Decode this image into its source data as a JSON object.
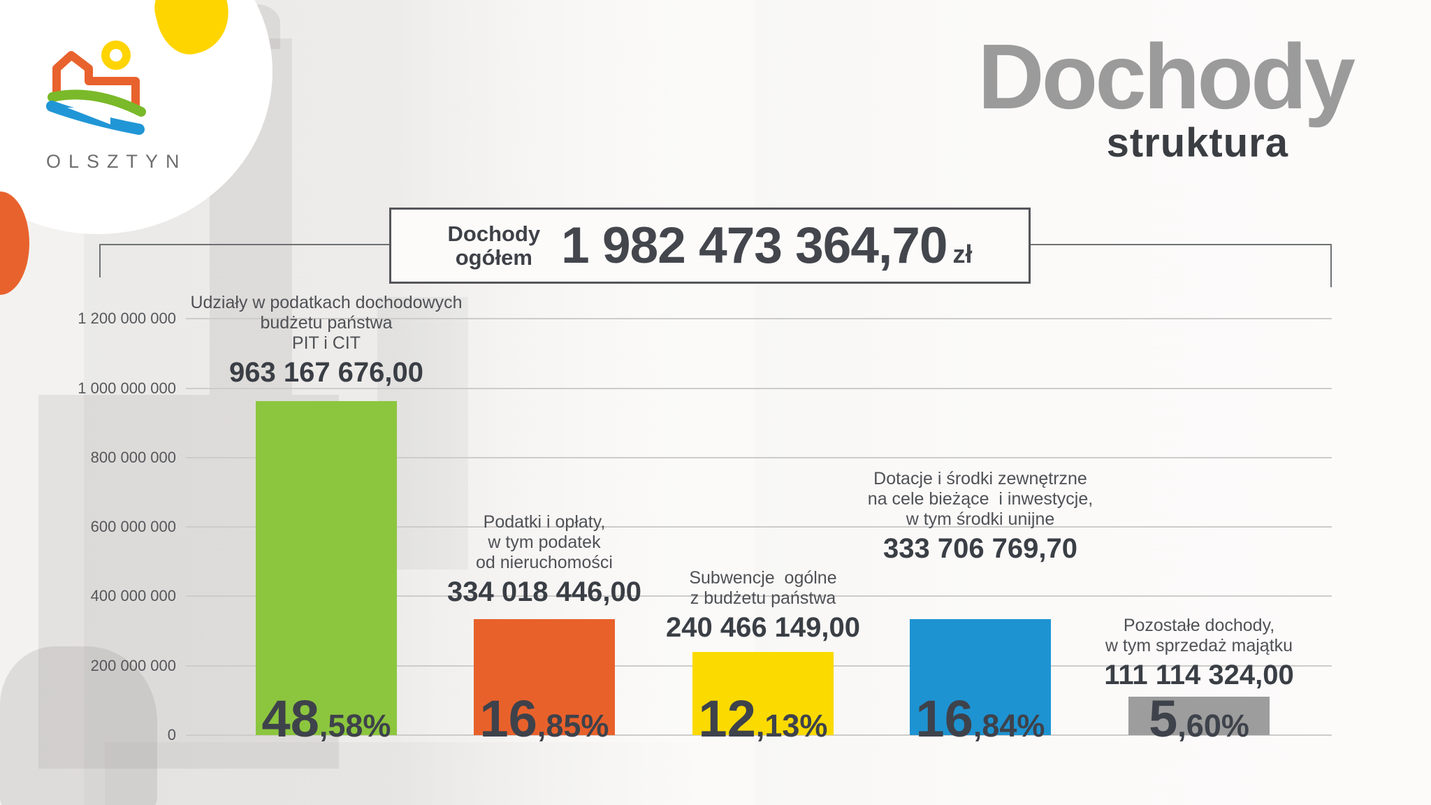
{
  "logo": {
    "city_name": "OLSZTYN"
  },
  "header": {
    "title": "Dochody",
    "subtitle": "struktura"
  },
  "total_box": {
    "label_line1": "Dochody",
    "label_line2": "ogółem",
    "amount": "1 982 473 364,70",
    "currency": "zł"
  },
  "chart_data": {
    "type": "bar",
    "title": "Dochody ogółem 1 982 473 364,70 zł",
    "xlabel": "",
    "ylabel": "",
    "ylim": [
      0,
      1200000000
    ],
    "grid": true,
    "legend_position": "none",
    "y_axis_ticks": [
      {
        "value": 0,
        "label": "0"
      },
      {
        "value": 200000000,
        "label": "200 000 000"
      },
      {
        "value": 400000000,
        "label": "400 000 000"
      },
      {
        "value": 600000000,
        "label": "600 000 000"
      },
      {
        "value": 800000000,
        "label": "800 000 000"
      },
      {
        "value": 1000000000,
        "label": "1 000 000 000"
      },
      {
        "value": 1200000000,
        "label": "1 200 000 000"
      }
    ],
    "bars": [
      {
        "name": "udzialy-w-podatkach-pit-cit",
        "label_lines": [
          "Udziały w podatkach dochodowych",
          "budżetu państwa",
          "PIT i CIT"
        ],
        "amount_label": "963 167 676,00",
        "value": 963167676.0,
        "percent": "48,58%",
        "percent_main": "48",
        "percent_rest": ",58%",
        "color": "#8CC63E"
      },
      {
        "name": "podatki-i-oplaty",
        "label_lines": [
          "Podatki i opłaty,",
          "w tym podatek",
          "od nieruchomości"
        ],
        "amount_label": "334 018 446,00",
        "value": 334018446.0,
        "percent": "16,85%",
        "percent_main": "16",
        "percent_rest": ",85%",
        "color": "#E8612B"
      },
      {
        "name": "subwencje-ogolne",
        "label_lines": [
          "Subwencje  ogólne",
          "z budżetu państwa"
        ],
        "amount_label": "240 466 149,00",
        "value": 240466149.0,
        "percent": "12,13%",
        "percent_main": "12",
        "percent_rest": ",13%",
        "color": "#FBDA00"
      },
      {
        "name": "dotacje-i-srodki-zewnetrzne",
        "label_lines": [
          "Dotacje i środki zewnętrzne",
          "na cele bieżące  i inwestycje,",
          "w tym środki unijne"
        ],
        "amount_label": "333 706 769,70",
        "value": 333706769.7,
        "percent": "16,84%",
        "percent_main": "16",
        "percent_rest": ",84%",
        "color": "#1E93D2"
      },
      {
        "name": "pozostale-dochody",
        "label_lines": [
          "Pozostałe dochody,",
          "w tym sprzedaż majątku"
        ],
        "amount_label": "111 114 324,00",
        "value": 111114324.0,
        "percent": "5,60%",
        "percent_main": "5",
        "percent_rest": ",60%",
        "color": "#9D9D9D"
      }
    ]
  }
}
